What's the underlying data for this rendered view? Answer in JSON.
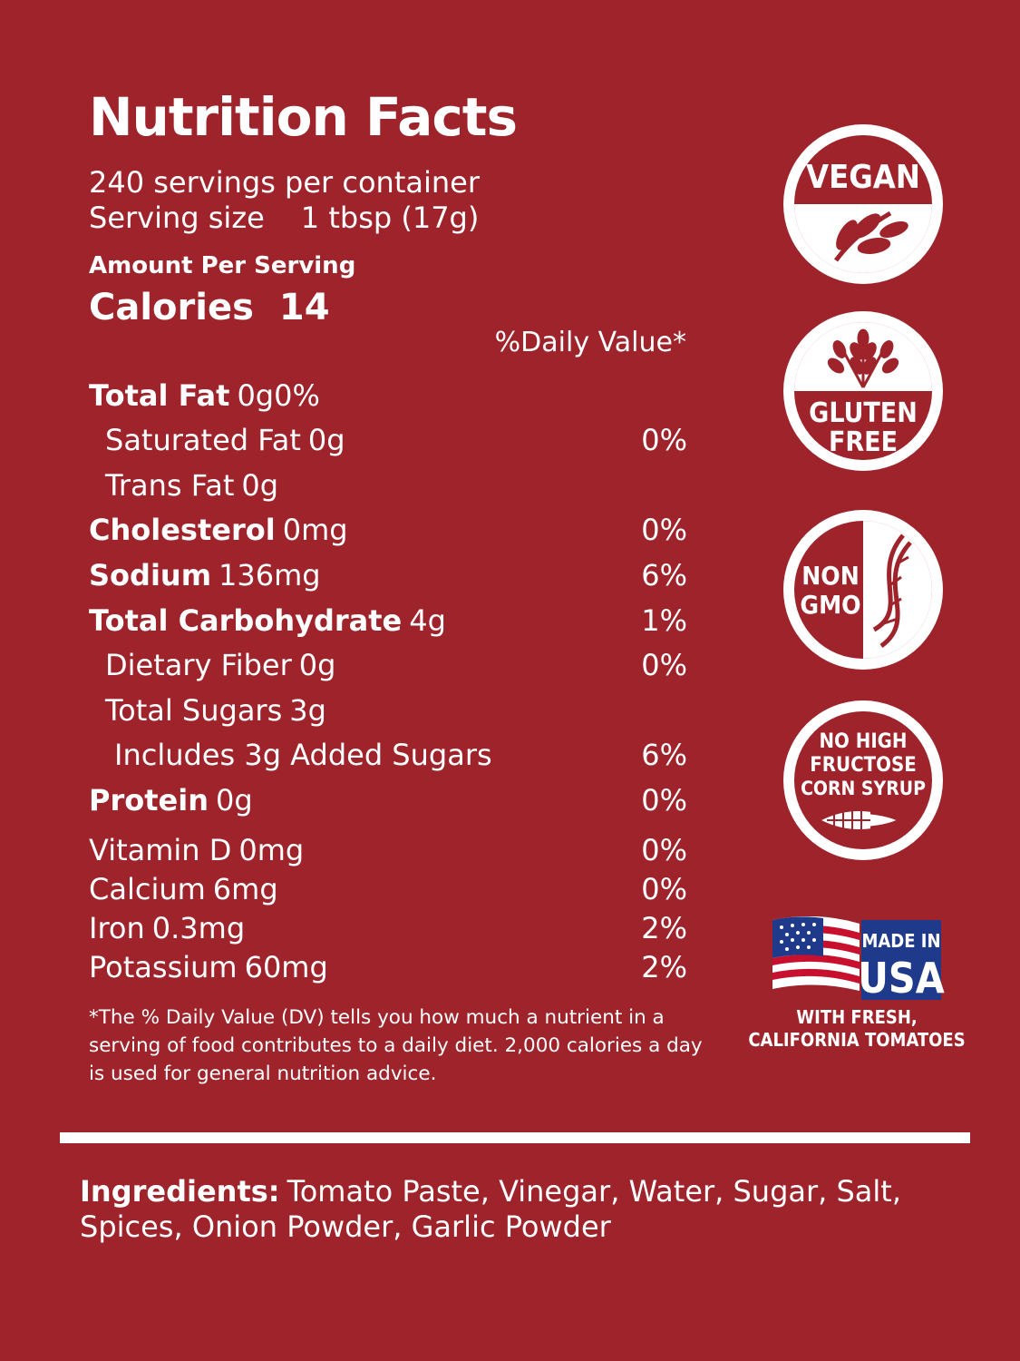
{
  "label": {
    "title": "Nutrition Facts",
    "servings_per_container": "240 servings per container",
    "serving_size_label": "Serving size",
    "serving_size_value": "1 tbsp (17g)",
    "amount_per_serving": "Amount Per Serving",
    "calories_label": "Calories",
    "calories_value": "14",
    "daily_value_header": "%Daily Value*"
  },
  "nutrients": [
    {
      "name": "Total Fat",
      "amount": "0g0%",
      "dv": ""
    },
    {
      "name": "Saturated Fat",
      "amount": "0g",
      "dv": "0%"
    },
    {
      "name": "Trans Fat",
      "amount": "0g",
      "dv": ""
    },
    {
      "name": "Cholesterol",
      "amount": "0mg",
      "dv": "0%"
    },
    {
      "name": "Sodium",
      "amount": "136mg",
      "dv": "6%"
    },
    {
      "name": "Total Carbohydrate",
      "amount": "4g",
      "dv": "1%"
    },
    {
      "name": "Dietary Fiber",
      "amount": "0g",
      "dv": "0%"
    },
    {
      "name": "Total Sugars",
      "amount": "3g",
      "dv": ""
    },
    {
      "name": "Includes 3g Added Sugars",
      "amount": "",
      "dv": "6%"
    },
    {
      "name": "Protein",
      "amount": "0g",
      "dv": "0%"
    }
  ],
  "vitamins": [
    {
      "name": "Vitamin D",
      "amount": "0mg",
      "dv": "0%"
    },
    {
      "name": "Calcium",
      "amount": "6mg",
      "dv": "0%"
    },
    {
      "name": "Iron",
      "amount": "0.3mg",
      "dv": "2%"
    },
    {
      "name": "Potassium",
      "amount": "60mg",
      "dv": "2%"
    }
  ],
  "footnote": "*The % Daily Value (DV) tells you how much a nutrient in a serving of food contributes to a daily diet. 2,000 calories a day is used for general nutrition advice.",
  "ingredients": {
    "label": "Ingredients:",
    "text": "Tomato Paste, Vinegar, Water, Sugar, Salt, Spices, Onion Powder, Garlic Powder"
  },
  "badges": {
    "vegan": "VEGAN",
    "gluten_free_line1": "GLUTEN",
    "gluten_free_line2": "FREE",
    "non_gmo_line1": "NON",
    "non_gmo_line2": "GMO",
    "hfcs_line1": "NO HIGH",
    "hfcs_line2": "FRUCTOSE",
    "hfcs_line3": "CORN SYRUP",
    "usa_line1": "MADE IN",
    "usa_line2": "USA",
    "usa_sub1": "WITH FRESH,",
    "usa_sub2": "CALIFORNIA TOMATOES"
  },
  "colors": {
    "background": "#9e232b",
    "foreground": "#ffffff",
    "flag_blue": "#1f3a8a",
    "flag_red": "#c8102e"
  },
  "icons": [
    "leaf-sprig-icon",
    "wheat-icon",
    "dna-icon",
    "corn-icon",
    "us-flag-icon"
  ]
}
